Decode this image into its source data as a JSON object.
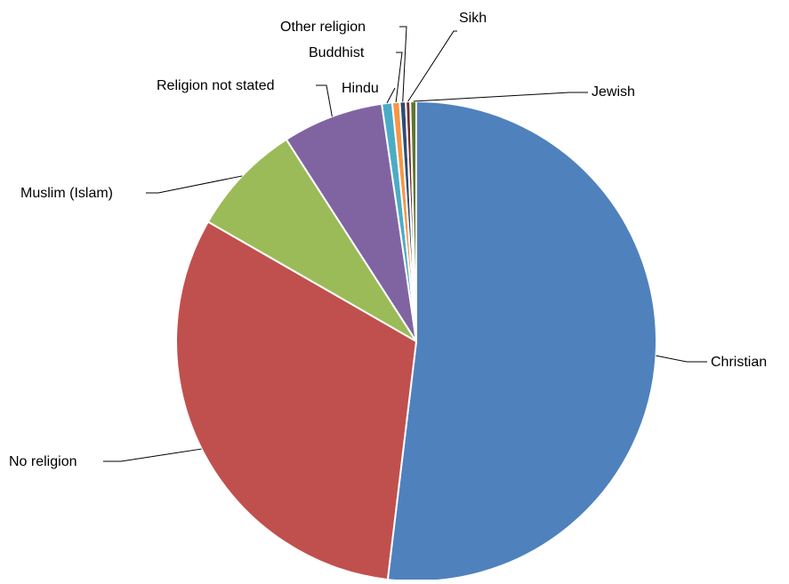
{
  "chart_data": {
    "type": "pie",
    "title": "",
    "start_angle_deg": 0,
    "direction": "clockwise",
    "slices": [
      {
        "label": "Christian",
        "value": 51.9,
        "color": "#4F81BD"
      },
      {
        "label": "No religion",
        "value": 31.4,
        "color": "#C0504D"
      },
      {
        "label": "Muslim (Islam)",
        "value": 7.6,
        "color": "#9BBB59"
      },
      {
        "label": "Religion not stated",
        "value": 6.8,
        "color": "#8064A2"
      },
      {
        "label": "Hindu",
        "value": 0.7,
        "color": "#4BACC6"
      },
      {
        "label": "Buddhist",
        "value": 0.5,
        "color": "#F79646"
      },
      {
        "label": "Other religion",
        "value": 0.4,
        "color": "#2C4D75"
      },
      {
        "label": "Sikh",
        "value": 0.3,
        "color": "#772C2A"
      },
      {
        "label": "Jewish",
        "value": 0.4,
        "color": "#5F7530"
      }
    ],
    "legend": "none",
    "data_labels": "category name with leader lines"
  }
}
